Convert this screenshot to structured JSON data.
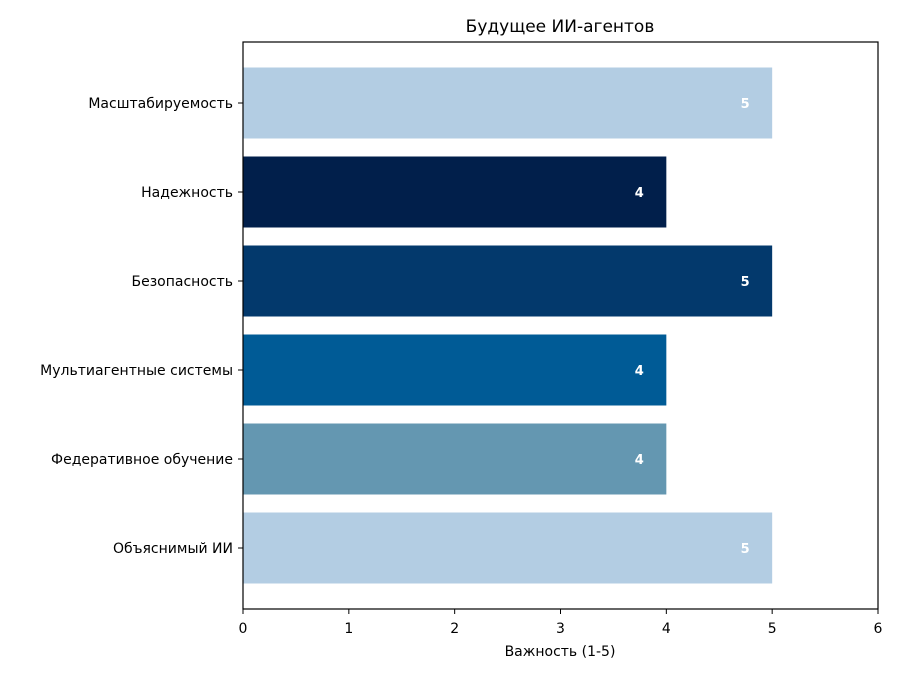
{
  "chart_data": {
    "type": "bar",
    "orientation": "horizontal",
    "title": "Будущее ИИ-агентов",
    "xlabel": "Важность (1-5)",
    "ylabel": "",
    "xlim": [
      0,
      6
    ],
    "xticks": [
      0,
      1,
      2,
      3,
      4,
      5,
      6
    ],
    "grid": false,
    "categories": [
      "Масштабируемость",
      "Надежность",
      "Безопасность",
      "Мультиагентные системы",
      "Федеративное обучение",
      "Объяснимый ИИ"
    ],
    "values": [
      5,
      4,
      5,
      4,
      4,
      5
    ],
    "data_labels": [
      "5",
      "4",
      "5",
      "4",
      "4",
      "5"
    ],
    "colors": [
      "#b3cde3",
      "#011f4b",
      "#03396c",
      "#005b96",
      "#6497b1",
      "#b3cde3"
    ]
  }
}
